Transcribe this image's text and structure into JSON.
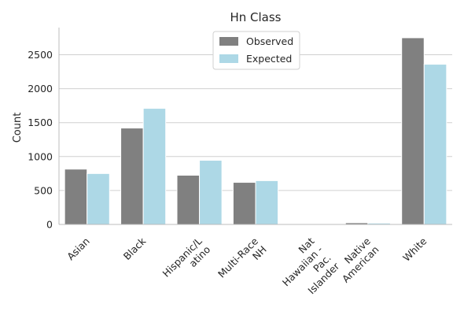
{
  "chart_data": {
    "type": "bar",
    "title": "Hn Class",
    "xlabel": "",
    "ylabel": "Count",
    "categories": [
      [
        "Asian"
      ],
      [
        "Black"
      ],
      [
        "Hispanic/L",
        "atino"
      ],
      [
        "Multi-Race",
        "NH"
      ],
      [
        "Nat",
        "Hawaiian -",
        "Pac.",
        "Islander"
      ],
      [
        "Native",
        "American"
      ],
      [
        "White"
      ]
    ],
    "series": [
      {
        "name": "Observed",
        "color": "#808080",
        "values": [
          815,
          1420,
          725,
          620,
          3,
          25,
          2750
        ]
      },
      {
        "name": "Expected",
        "color": "#add8e6",
        "values": [
          750,
          1710,
          945,
          645,
          5,
          20,
          2360
        ]
      }
    ],
    "ylim": [
      0,
      2900
    ],
    "yticks": [
      0,
      500,
      1000,
      1500,
      2000,
      2500
    ],
    "grid": "horizontal",
    "legend": "top-center"
  }
}
